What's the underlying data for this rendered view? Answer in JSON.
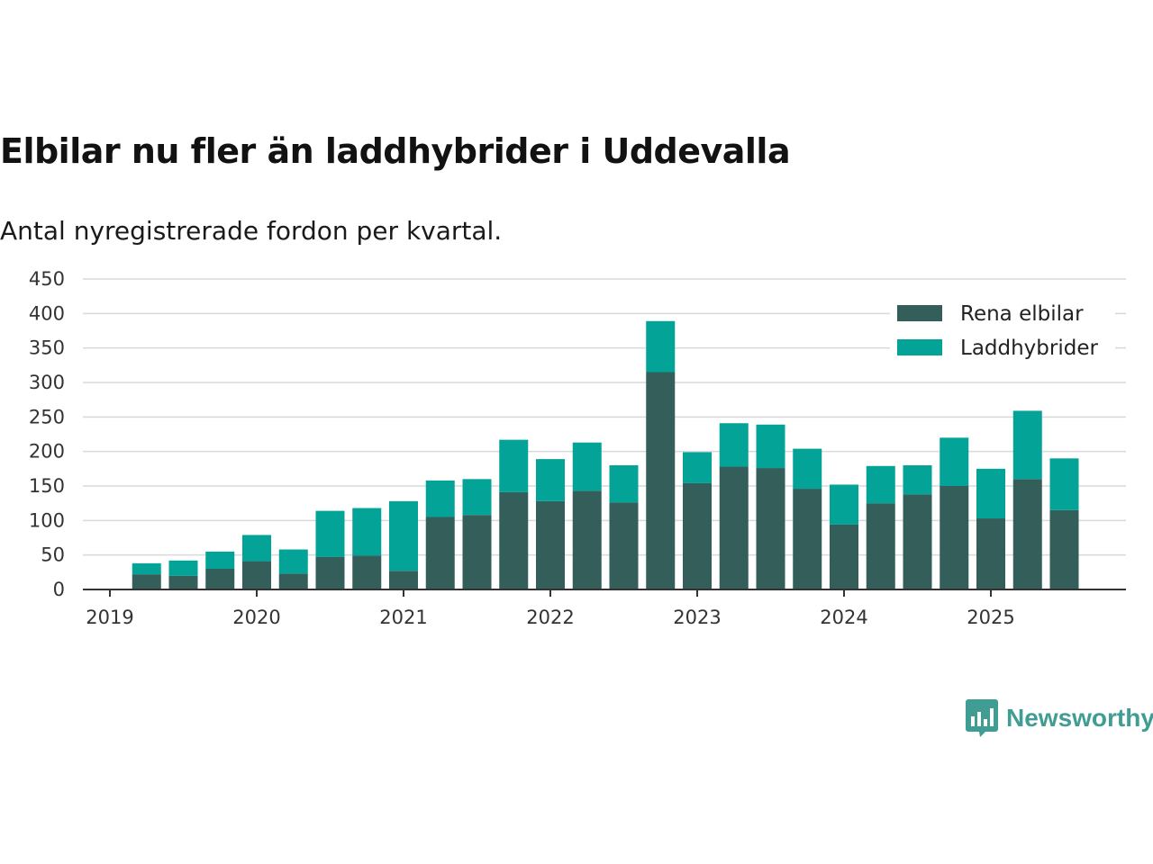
{
  "header": {
    "title": "Elbilar nu fler än laddhybrider i Uddevalla",
    "subtitle": "Antal nyregistrerade fordon per kvartal."
  },
  "brand": {
    "name": "Newsworthy",
    "color": "#3f9d94"
  },
  "chart_data": {
    "type": "bar",
    "stacked": true,
    "title": "Elbilar nu fler än laddhybrider i Uddevalla",
    "subtitle": "Antal nyregistrerade fordon per kvartal.",
    "xlabel": "",
    "ylabel": "",
    "ylim": [
      0,
      450
    ],
    "yticks": [
      0,
      50,
      100,
      150,
      200,
      250,
      300,
      350,
      400,
      450
    ],
    "xticks": [
      {
        "label": "2019",
        "at": 0
      },
      {
        "label": "2020",
        "at": 4
      },
      {
        "label": "2021",
        "at": 8
      },
      {
        "label": "2022",
        "at": 12
      },
      {
        "label": "2023",
        "at": 16
      },
      {
        "label": "2024",
        "at": 20
      },
      {
        "label": "2025",
        "at": 24
      }
    ],
    "grid": true,
    "legend_position": "top-right",
    "categories": [
      "2019 Q1",
      "2019 Q2",
      "2019 Q3",
      "2019 Q4",
      "2020 Q1",
      "2020 Q2",
      "2020 Q3",
      "2020 Q4",
      "2021 Q1",
      "2021 Q2",
      "2021 Q3",
      "2021 Q4",
      "2022 Q1",
      "2022 Q2",
      "2022 Q3",
      "2022 Q4",
      "2023 Q1",
      "2023 Q2",
      "2023 Q3",
      "2023 Q4",
      "2024 Q1",
      "2024 Q2",
      "2024 Q3",
      "2024 Q4",
      "2025 Q1",
      "2025 Q2",
      "2025 Q3"
    ],
    "series": [
      {
        "name": "Rena elbilar",
        "color": "#335e59",
        "values": [
          null,
          22,
          20,
          30,
          41,
          23,
          47,
          49,
          27,
          105,
          108,
          141,
          128,
          143,
          126,
          315,
          154,
          178,
          176,
          146,
          94,
          125,
          138,
          150,
          103,
          160,
          115
        ]
      },
      {
        "name": "Laddhybrider",
        "color": "#04a397",
        "values": [
          null,
          16,
          22,
          25,
          38,
          35,
          67,
          69,
          101,
          53,
          52,
          76,
          61,
          70,
          54,
          74,
          45,
          63,
          63,
          58,
          58,
          54,
          42,
          70,
          72,
          99,
          75
        ]
      }
    ]
  }
}
